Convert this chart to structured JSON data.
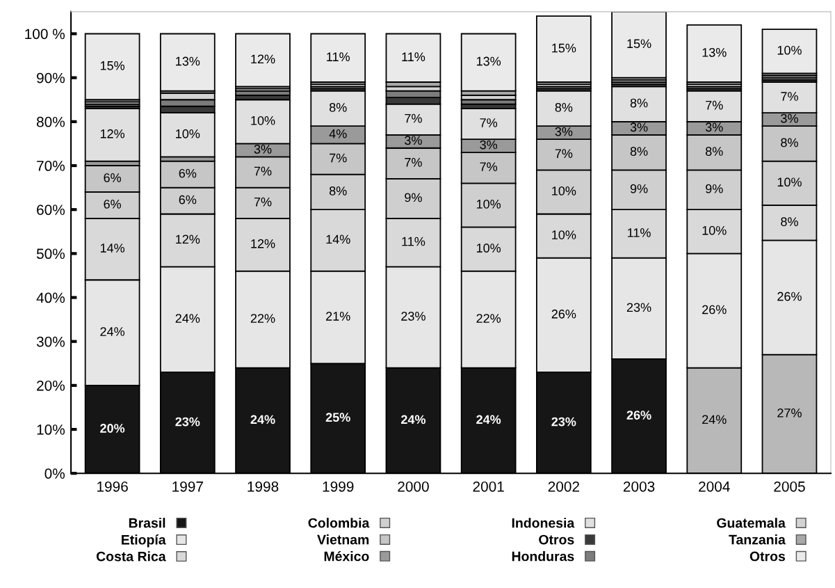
{
  "chart_data": {
    "type": "bar",
    "stacked": true,
    "categories": [
      "1996",
      "1997",
      "1998",
      "1999",
      "2000",
      "2001",
      "2002",
      "2003",
      "2004",
      "2005"
    ],
    "ylim": [
      0,
      105
    ],
    "yticks": [
      {
        "value": 0,
        "label": "0%"
      },
      {
        "value": 10,
        "label": "10%"
      },
      {
        "value": 20,
        "label": "20%"
      },
      {
        "value": 30,
        "label": "30%"
      },
      {
        "value": 40,
        "label": "40%"
      },
      {
        "value": 50,
        "label": "50%"
      },
      {
        "value": 60,
        "label": "60%"
      },
      {
        "value": 70,
        "label": "70%"
      },
      {
        "value": 80,
        "label": "80%"
      },
      {
        "value": 90,
        "label": "90%"
      },
      {
        "value": 100,
        "label": "100 %"
      }
    ],
    "grid": false,
    "legend": "bottom",
    "series": [
      {
        "name": "Brasil",
        "colors": [
          "#161616",
          "#161616",
          "#161616",
          "#161616",
          "#161616",
          "#161616",
          "#161616",
          "#161616",
          "#b8b8b8",
          "#b8b8b8"
        ],
        "values": [
          20,
          23,
          24,
          25,
          24,
          24,
          23,
          26,
          24,
          27
        ],
        "value_labels": [
          "20%",
          "23%",
          "24%",
          "25%",
          "24%",
          "24%",
          "23%",
          "26%",
          "24%",
          "27%"
        ]
      },
      {
        "name": "Etiopía",
        "color": "#e6e6e6",
        "values": [
          24,
          24,
          22,
          21,
          23,
          22,
          26,
          23,
          26,
          26
        ],
        "value_labels": [
          "24%",
          "24%",
          "22%",
          "21%",
          "23%",
          "22%",
          "26%",
          "23%",
          "26%",
          "26%"
        ]
      },
      {
        "name": "Costa Rica",
        "color": "#d9d9d9",
        "values": [
          14,
          12,
          12,
          14,
          11,
          10,
          10,
          11,
          10,
          8
        ],
        "value_labels": [
          "14%",
          "12%",
          "12%",
          "14%",
          "11%",
          "10%",
          "10%",
          "11%",
          "10%",
          "8%"
        ]
      },
      {
        "name": "Colombia",
        "color": "#cfcfcf",
        "values": [
          6,
          6,
          7,
          8,
          9,
          10,
          10,
          9,
          9,
          10
        ],
        "value_labels": [
          "6%",
          "6%",
          "7%",
          "8%",
          "9%",
          "10%",
          "10%",
          "9%",
          "9%",
          "10%"
        ]
      },
      {
        "name": "Vietnam",
        "color": "#c6c6c6",
        "values": [
          6,
          6,
          7,
          7,
          7,
          7,
          7,
          8,
          8,
          8
        ],
        "value_labels": [
          "6%",
          "6%",
          "7%",
          "7%",
          "7%",
          "7%",
          "7%",
          "8%",
          "8%",
          "8%"
        ]
      },
      {
        "name": "México",
        "color": "#9a9a9a",
        "values": [
          1,
          1,
          3,
          4,
          3,
          3,
          3,
          3,
          3,
          3
        ],
        "value_labels": [
          null,
          null,
          "3%",
          "4%",
          "3%",
          "3%",
          "3%",
          "3%",
          "3%",
          "3%"
        ]
      },
      {
        "name": "Indonesia",
        "color": "#e0e0e0",
        "values": [
          12,
          10,
          10,
          8,
          7,
          7,
          8,
          8,
          7,
          7
        ],
        "value_labels": [
          "12%",
          "10%",
          "10%",
          "8%",
          "7%",
          "7%",
          "8%",
          "8%",
          "7%",
          "7%"
        ]
      },
      {
        "name": "Otros",
        "color": "#3a3a3a",
        "values": [
          0.5,
          1.5,
          1,
          0.5,
          1.5,
          1,
          0.5,
          0.5,
          0.5,
          0.5
        ],
        "value_labels": [
          null,
          null,
          null,
          null,
          null,
          null,
          null,
          null,
          null,
          null
        ]
      },
      {
        "name": "Honduras",
        "color": "#7c7c7c",
        "values": [
          0.5,
          1.5,
          1,
          0.5,
          1.5,
          1,
          0.5,
          0.5,
          0.5,
          0.5
        ],
        "value_labels": [
          null,
          null,
          null,
          null,
          null,
          null,
          null,
          null,
          null,
          null
        ]
      },
      {
        "name": "Guatemala",
        "color": "#d3d3d3",
        "values": [
          0.5,
          1.5,
          0.5,
          0.5,
          1,
          1,
          0.5,
          0.5,
          0.5,
          0.5
        ],
        "value_labels": [
          null,
          null,
          null,
          null,
          null,
          null,
          null,
          null,
          null,
          null
        ]
      },
      {
        "name": "Tanzania",
        "color": "#a8a8a8",
        "values": [
          0.5,
          0.5,
          0.5,
          0.5,
          1,
          1,
          0.5,
          0.5,
          0.5,
          0.5
        ],
        "value_labels": [
          null,
          null,
          null,
          null,
          null,
          null,
          null,
          null,
          null,
          null
        ]
      },
      {
        "name": "Otros",
        "color": "#eaeaea",
        "values": [
          15,
          13,
          12,
          11,
          11,
          13,
          15,
          15,
          13,
          10
        ],
        "value_labels": [
          "15%",
          "13%",
          "12%",
          "11%",
          "11%",
          "13%",
          "15%",
          "15%",
          "13%",
          "10%"
        ]
      }
    ]
  }
}
